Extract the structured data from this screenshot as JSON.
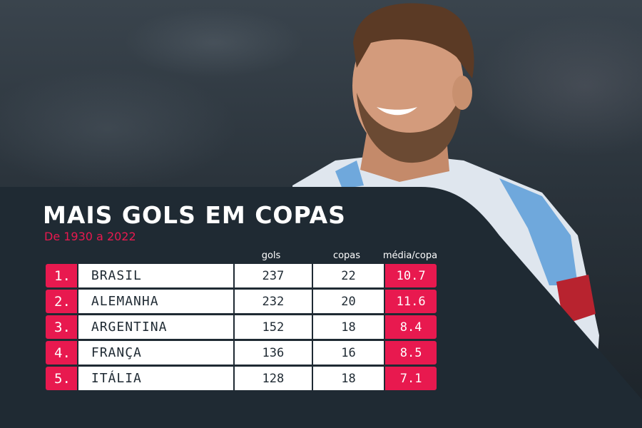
{
  "title": "MAIS GOLS EM COPAS",
  "subtitle": "De 1930 a 2022",
  "columns": {
    "gols": "gols",
    "copas": "copas",
    "media": "média/copa"
  },
  "rows": [
    {
      "rank": "1.",
      "country": "BRASIL",
      "gols": "237",
      "copas": "22",
      "media": "10.7"
    },
    {
      "rank": "2.",
      "country": "ALEMANHA",
      "gols": "232",
      "copas": "20",
      "media": "11.6"
    },
    {
      "rank": "3.",
      "country": "ARGENTINA",
      "gols": "152",
      "copas": "18",
      "media": "8.4"
    },
    {
      "rank": "4.",
      "country": "FRANÇA",
      "gols": "136",
      "copas": "16",
      "media": "8.5"
    },
    {
      "rank": "5.",
      "country": "ITÁLIA",
      "gols": "128",
      "copas": "18",
      "media": "7.1"
    }
  ],
  "colors": {
    "accent": "#e8194f",
    "panel": "#1f2a33",
    "cell": "#ffffff"
  }
}
